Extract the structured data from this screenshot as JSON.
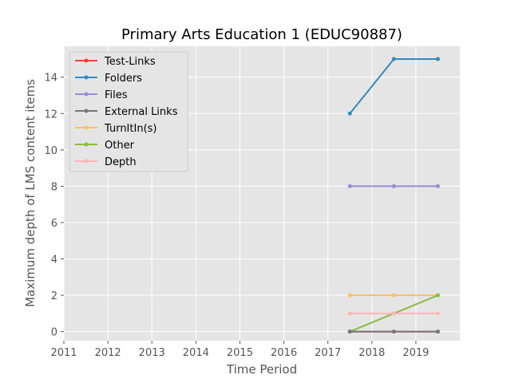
{
  "chart_data": {
    "type": "line",
    "title": "Primary Arts Education 1 (EDUC90887)",
    "xlabel": "Time Period",
    "ylabel": "Maximum depth of LMS content items",
    "xlim": [
      2011,
      2020
    ],
    "ylim": [
      -0.5,
      15.7
    ],
    "xticks": [
      2011,
      2012,
      2013,
      2014,
      2015,
      2016,
      2017,
      2018,
      2019
    ],
    "yticks": [
      0,
      2,
      4,
      6,
      8,
      10,
      12,
      14
    ],
    "grid": true,
    "legend_position": "upper-left",
    "x": [
      2017.5,
      2018.5,
      2019.5
    ],
    "series": [
      {
        "name": "Test-Links",
        "color": "#E24A33",
        "values": [
          0,
          0,
          0
        ]
      },
      {
        "name": "Folders",
        "color": "#348ABD",
        "values": [
          12,
          15,
          15
        ]
      },
      {
        "name": "Files",
        "color": "#988ED5",
        "values": [
          8,
          8,
          8
        ]
      },
      {
        "name": "External Links",
        "color": "#777777",
        "values": [
          0,
          0,
          0
        ]
      },
      {
        "name": "TurnItIn(s)",
        "color": "#FBC15E",
        "values": [
          2,
          2,
          2
        ]
      },
      {
        "name": "Other",
        "color": "#8EBA42",
        "values": [
          0,
          1,
          2
        ]
      },
      {
        "name": "Depth",
        "color": "#FFB5B8",
        "values": [
          1,
          1,
          1
        ]
      }
    ],
    "draw_order": [
      0,
      1,
      2,
      4,
      5,
      6,
      3
    ]
  }
}
